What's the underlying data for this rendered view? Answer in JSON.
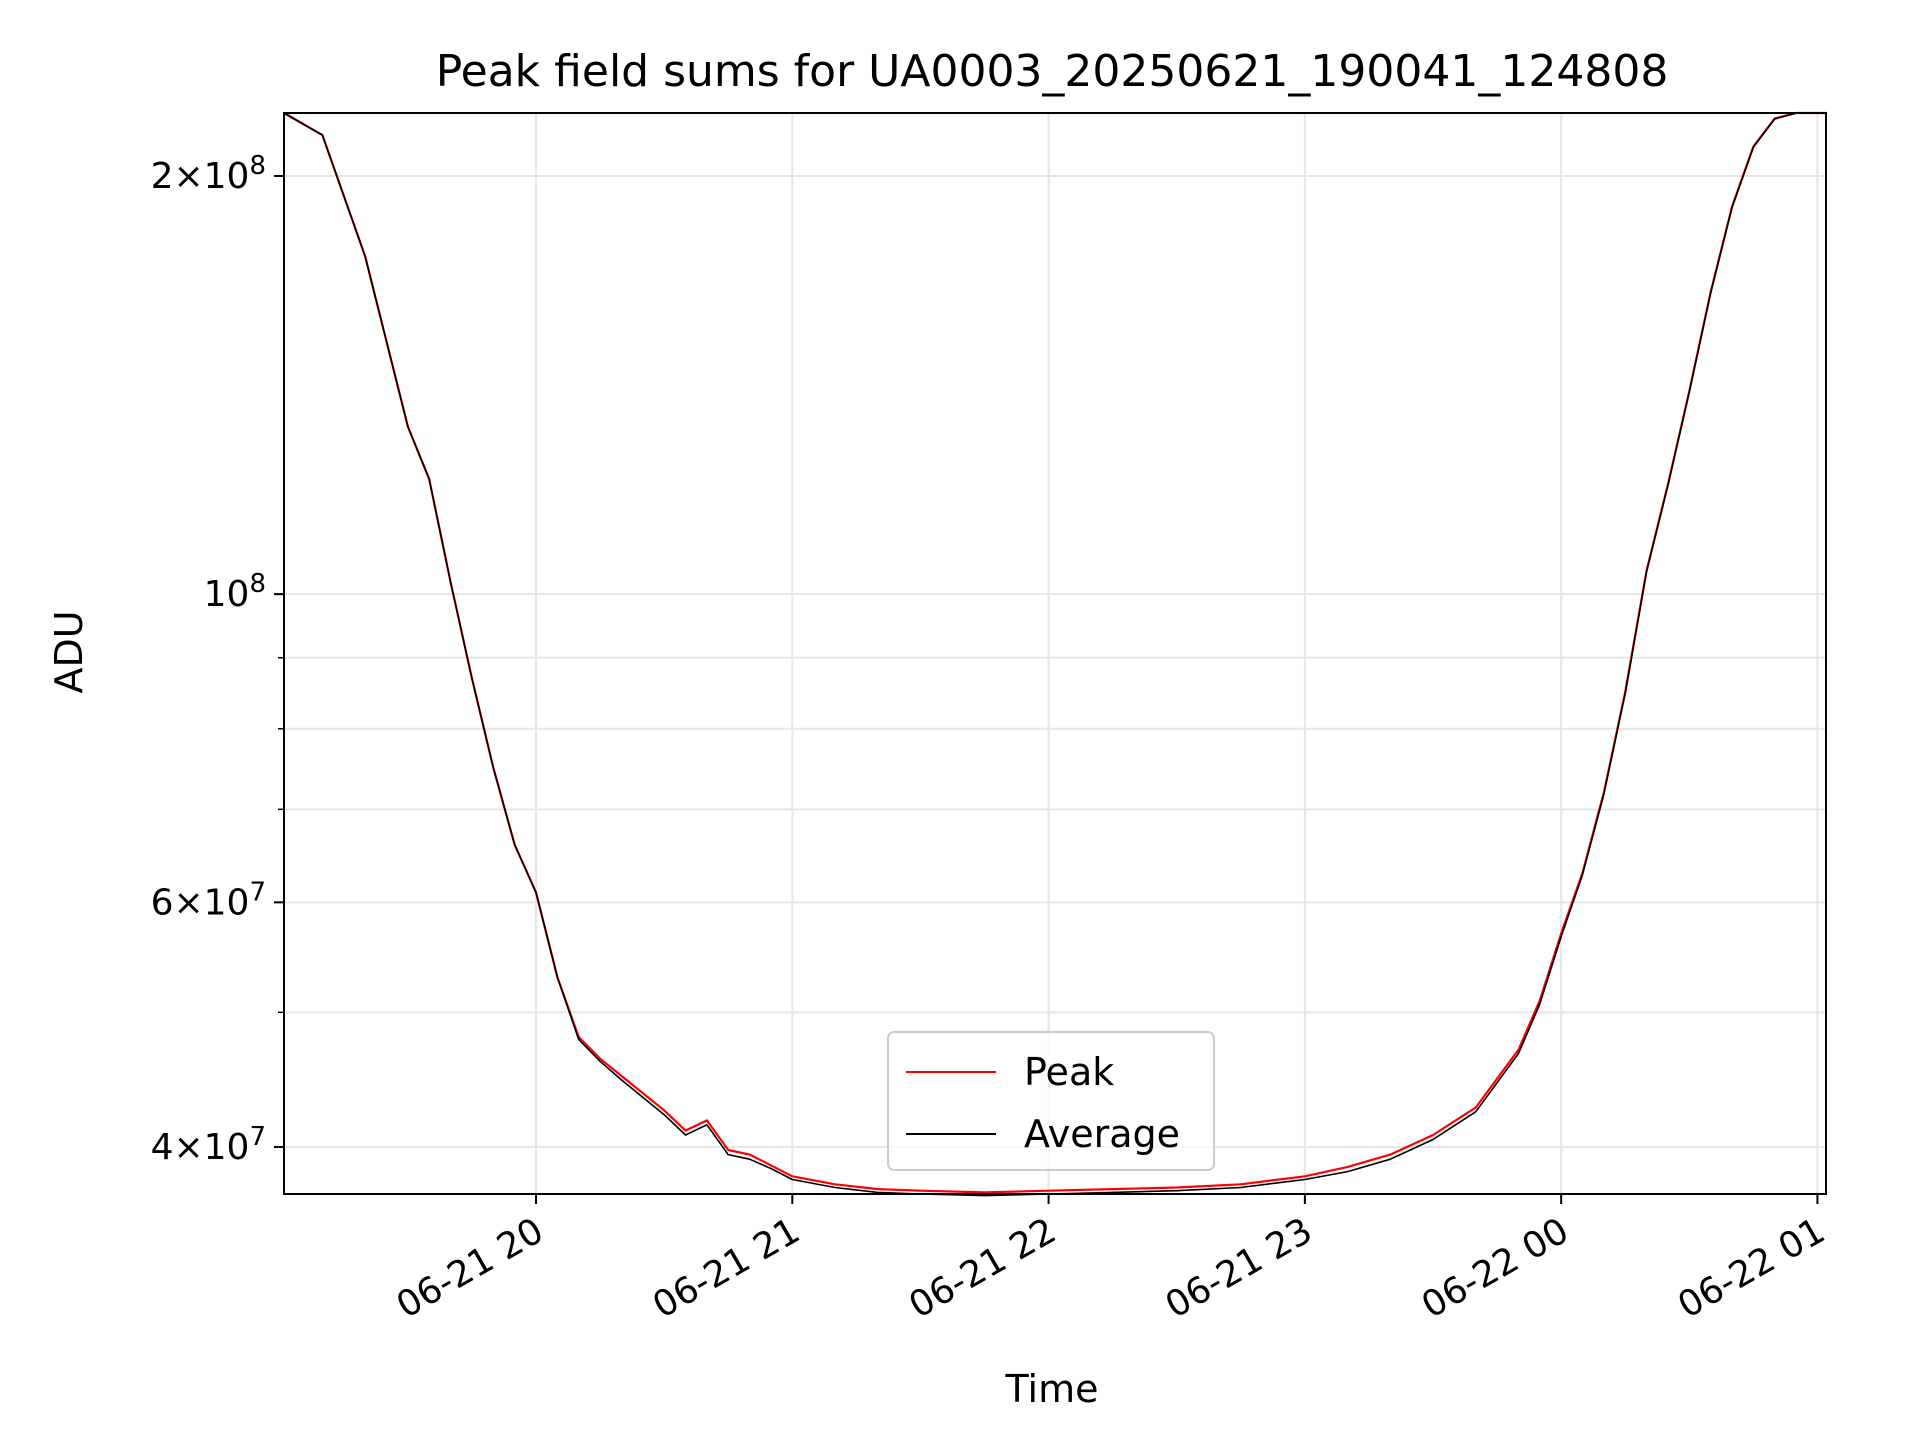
{
  "chart_data": {
    "type": "line",
    "title": "Peak field sums for UA0003_20250621_190041_124808",
    "xlabel": "Time",
    "ylabel": "ADU",
    "y_scale": "log",
    "ylim": [
      37000000,
      222000000
    ],
    "xlim": [
      "2025-06-21 19:01",
      "2025-06-22 01:02"
    ],
    "grid": true,
    "legend_position": "lower center",
    "x_ticks": [
      {
        "t": "2025-06-21 20:00",
        "label": "06-21 20"
      },
      {
        "t": "2025-06-21 21:00",
        "label": "06-21 21"
      },
      {
        "t": "2025-06-21 22:00",
        "label": "06-21 22"
      },
      {
        "t": "2025-06-21 23:00",
        "label": "06-21 23"
      },
      {
        "t": "2025-06-22 00:00",
        "label": "06-22 00"
      },
      {
        "t": "2025-06-22 01:00",
        "label": "06-22 01"
      }
    ],
    "y_major_ticks": [
      {
        "value": 40000000,
        "mantissa": "4",
        "exp": "7"
      },
      {
        "value": 60000000,
        "mantissa": "6",
        "exp": "7"
      },
      {
        "value": 100000000,
        "mantissa": "",
        "exp": "8"
      },
      {
        "value": 200000000,
        "mantissa": "2",
        "exp": "8"
      }
    ],
    "y_minor_ticks": [
      50000000,
      70000000,
      80000000,
      90000000
    ],
    "series": [
      {
        "name": "Peak",
        "color": "#ff0000",
        "x": [
          "2025-06-21 19:01",
          "2025-06-21 19:10",
          "2025-06-21 19:20",
          "2025-06-21 19:30",
          "2025-06-21 19:35",
          "2025-06-21 19:40",
          "2025-06-21 19:45",
          "2025-06-21 19:50",
          "2025-06-21 19:55",
          "2025-06-21 20:00",
          "2025-06-21 20:05",
          "2025-06-21 20:10",
          "2025-06-21 20:15",
          "2025-06-21 20:20",
          "2025-06-21 20:30",
          "2025-06-21 20:35",
          "2025-06-21 20:40",
          "2025-06-21 20:45",
          "2025-06-21 20:50",
          "2025-06-21 20:55",
          "2025-06-21 21:00",
          "2025-06-21 21:10",
          "2025-06-21 21:20",
          "2025-06-21 21:30",
          "2025-06-21 21:45",
          "2025-06-21 22:00",
          "2025-06-21 22:15",
          "2025-06-21 22:30",
          "2025-06-21 22:45",
          "2025-06-21 23:00",
          "2025-06-21 23:10",
          "2025-06-21 23:20",
          "2025-06-21 23:30",
          "2025-06-21 23:40",
          "2025-06-21 23:50",
          "2025-06-21 23:55",
          "2025-06-22 00:00",
          "2025-06-22 00:05",
          "2025-06-22 00:10",
          "2025-06-22 00:15",
          "2025-06-22 00:20",
          "2025-06-22 00:25",
          "2025-06-22 00:30",
          "2025-06-22 00:35",
          "2025-06-22 00:40",
          "2025-06-22 00:45",
          "2025-06-22 00:50",
          "2025-06-22 00:55",
          "2025-06-22 01:02"
        ],
        "y": [
          222000000,
          214000000,
          175000000,
          132000000,
          121000000,
          102000000,
          87000000,
          75000000,
          66000000,
          61000000,
          53000000,
          48000000,
          46300000,
          45000000,
          42500000,
          41100000,
          41800000,
          39800000,
          39500000,
          38800000,
          38100000,
          37600000,
          37300000,
          37200000,
          37100000,
          37200000,
          37300000,
          37400000,
          37600000,
          38100000,
          38700000,
          39500000,
          40800000,
          42700000,
          47000000,
          51000000,
          57000000,
          63000000,
          72000000,
          85000000,
          104000000,
          120000000,
          140000000,
          165000000,
          190000000,
          210000000,
          220000000,
          222000000,
          222000000
        ]
      },
      {
        "name": "Average",
        "color": "#000000",
        "x": [
          "2025-06-21 19:01",
          "2025-06-21 19:10",
          "2025-06-21 19:20",
          "2025-06-21 19:30",
          "2025-06-21 19:35",
          "2025-06-21 19:40",
          "2025-06-21 19:45",
          "2025-06-21 19:50",
          "2025-06-21 19:55",
          "2025-06-21 20:00",
          "2025-06-21 20:05",
          "2025-06-21 20:10",
          "2025-06-21 20:15",
          "2025-06-21 20:20",
          "2025-06-21 20:30",
          "2025-06-21 20:35",
          "2025-06-21 20:40",
          "2025-06-21 20:45",
          "2025-06-21 20:50",
          "2025-06-21 20:55",
          "2025-06-21 21:00",
          "2025-06-21 21:10",
          "2025-06-21 21:20",
          "2025-06-21 21:30",
          "2025-06-21 21:45",
          "2025-06-21 22:00",
          "2025-06-21 22:15",
          "2025-06-21 22:30",
          "2025-06-21 22:45",
          "2025-06-21 23:00",
          "2025-06-21 23:10",
          "2025-06-21 23:20",
          "2025-06-21 23:30",
          "2025-06-21 23:40",
          "2025-06-21 23:50",
          "2025-06-21 23:55",
          "2025-06-22 00:00",
          "2025-06-22 00:05",
          "2025-06-22 00:10",
          "2025-06-22 00:15",
          "2025-06-22 00:20",
          "2025-06-22 00:25",
          "2025-06-22 00:30",
          "2025-06-22 00:35",
          "2025-06-22 00:40",
          "2025-06-22 00:45",
          "2025-06-22 00:50",
          "2025-06-22 00:55",
          "2025-06-22 01:02"
        ],
        "y": [
          222000000,
          214000000,
          175000000,
          132000000,
          121000000,
          102000000,
          87000000,
          75000000,
          66000000,
          61000000,
          53000000,
          47800000,
          46100000,
          44700000,
          42200000,
          40800000,
          41500000,
          39500000,
          39200000,
          38600000,
          37900000,
          37400000,
          37100000,
          37000000,
          36900000,
          37000000,
          37100000,
          37200000,
          37400000,
          37900000,
          38400000,
          39200000,
          40500000,
          42400000,
          46700000,
          50700000,
          56700000,
          62800000,
          71800000,
          84800000,
          103800000,
          119800000,
          139800000,
          164800000,
          189800000,
          209800000,
          219800000,
          222000000,
          222000000
        ]
      }
    ]
  }
}
